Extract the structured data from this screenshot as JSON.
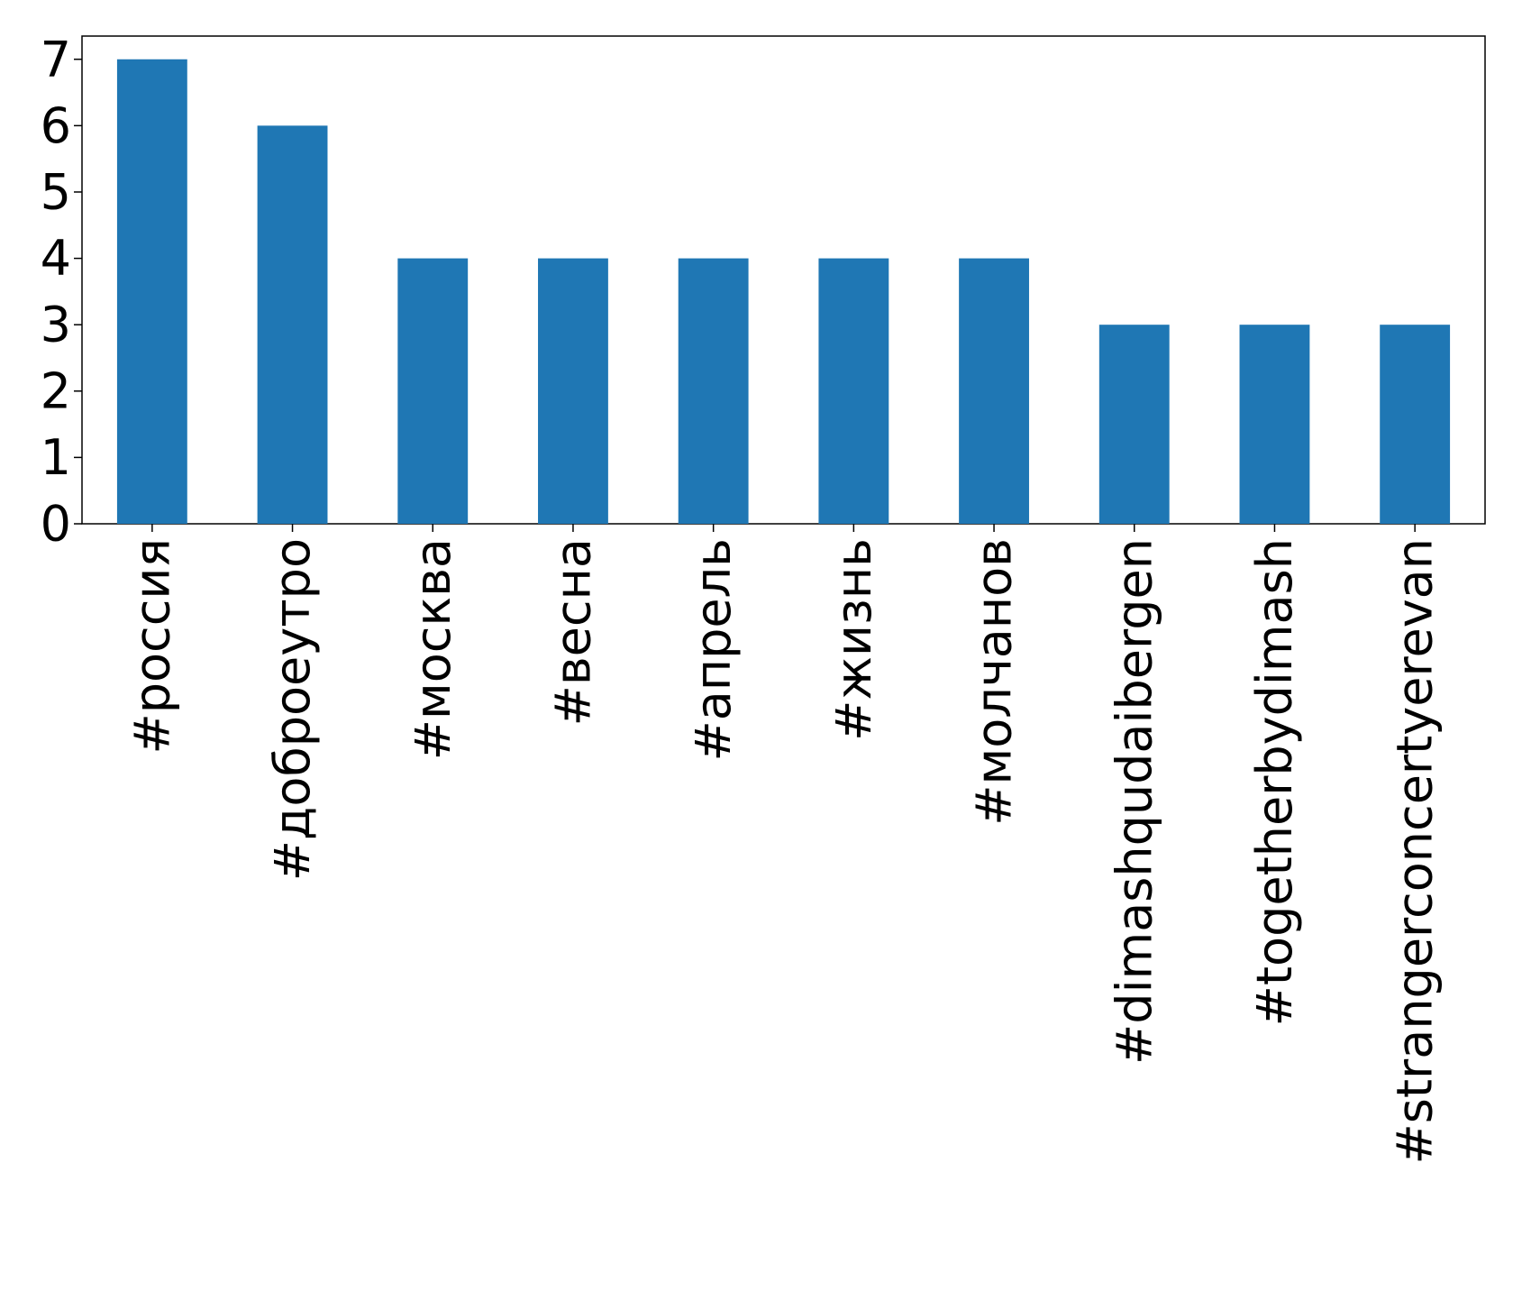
{
  "chart_data": {
    "type": "bar",
    "categories": [
      "#россия",
      "#доброеутро",
      "#москва",
      "#весна",
      "#апрель",
      "#жизнь",
      "#молчанов",
      "#dimashqudaibergen",
      "#togetherbydimash",
      "#strangerconcertyerevan"
    ],
    "values": [
      7,
      6,
      4,
      4,
      4,
      4,
      4,
      3,
      3,
      3
    ],
    "color": "#1f77b4",
    "ylim": [
      0,
      7.35
    ],
    "yticks": [
      0,
      1,
      2,
      3,
      4,
      5,
      6,
      7
    ],
    "grid": false
  }
}
